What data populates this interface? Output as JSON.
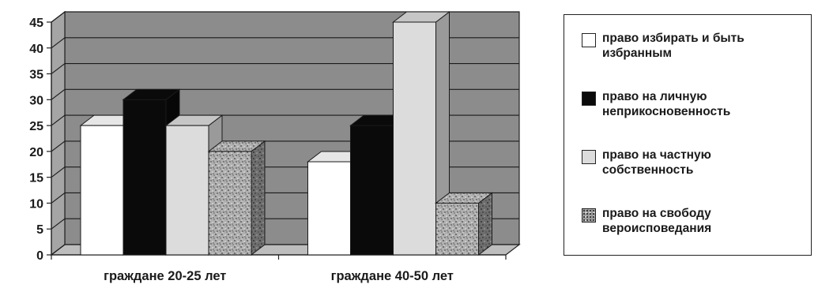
{
  "chart_data": {
    "type": "bar",
    "title": "",
    "xlabel": "",
    "ylabel": "",
    "categories": [
      "граждане 20-25 лет",
      "граждане 40-50 лет"
    ],
    "series": [
      {
        "name": "право избирать  и быть избранным",
        "values": [
          25,
          18
        ],
        "color": "#ffffff"
      },
      {
        "name": "право на личную неприкосновенность",
        "values": [
          30,
          25
        ],
        "color": "#0a0a0a"
      },
      {
        "name": "право на частную собственность",
        "values": [
          25,
          45
        ],
        "color": "#dcdcdc"
      },
      {
        "name": "право на свободу вероисповедания",
        "values": [
          20,
          10
        ],
        "color": "#9a9a9a",
        "pattern": "speckled"
      }
    ],
    "ylim": [
      0,
      45
    ],
    "yticks": [
      0,
      5,
      10,
      15,
      20,
      25,
      30,
      35,
      40,
      45
    ],
    "grid": true,
    "legend_position": "right",
    "style": "3d",
    "wall_color": "#8c8c8c",
    "floor_color": "#bdbdbd"
  },
  "legend": {
    "items": [
      {
        "label": "право избирать  и быть\nизбранным"
      },
      {
        "label": "право на личную\nнеприкосновенность"
      },
      {
        "label": "право на частную\nсобственность"
      },
      {
        "label": "право на свободу\nвероисповедания"
      }
    ]
  }
}
